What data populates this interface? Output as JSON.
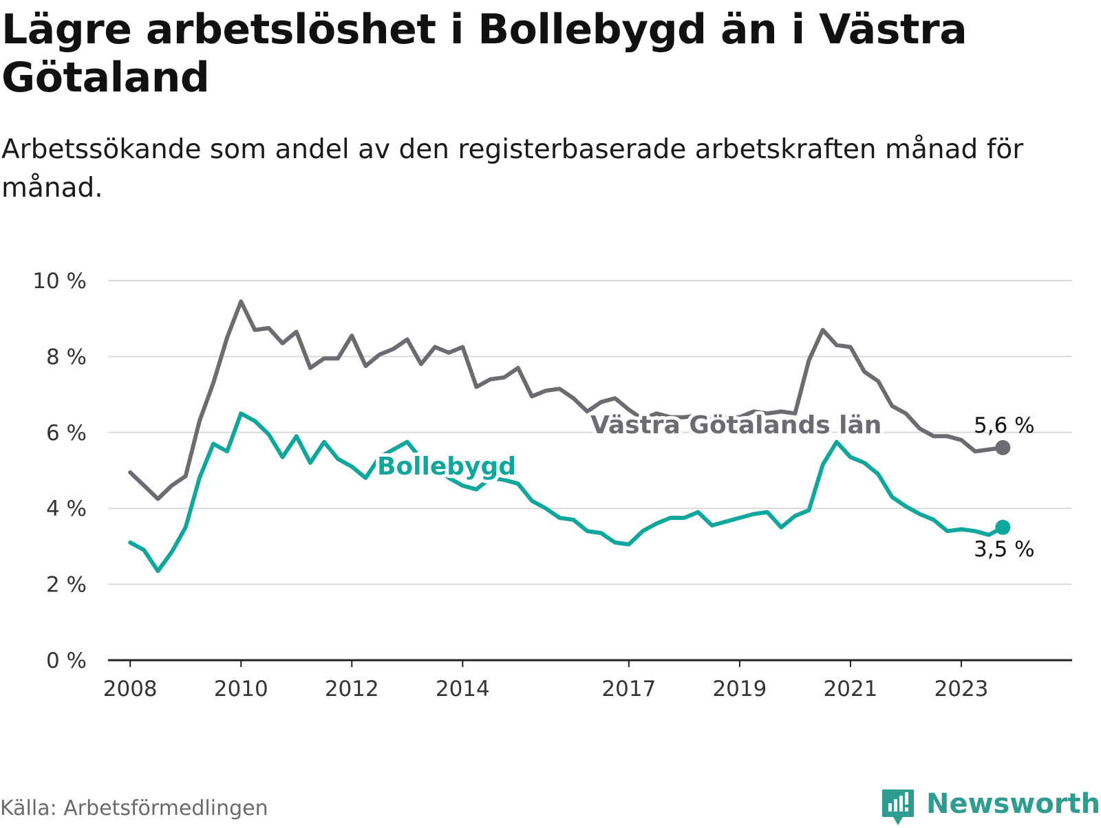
{
  "header": {
    "title": "Lägre arbetslöshet i Bollebygd än i Västra Götaland",
    "subtitle": "Arbetssökande som andel av den registerbaserade arbetskraften månad för månad."
  },
  "footer": {
    "source": "Källa: Arbetsförmedlingen",
    "brand": "Newsworthy"
  },
  "colors": {
    "vg": "#6d6b72",
    "bollebygd": "#0fa69c",
    "grid": "#d9d9d9",
    "axis": "#222222"
  },
  "chart_data": {
    "type": "line",
    "title": "Lägre arbetslöshet i Bollebygd än i Västra Götaland",
    "ylabel": "",
    "xlabel": "",
    "ylim": [
      0,
      10
    ],
    "xlim": [
      2007.6,
      2025.0
    ],
    "y_ticks": [
      {
        "value": 0,
        "label": "0 %"
      },
      {
        "value": 2,
        "label": "2 %"
      },
      {
        "value": 4,
        "label": "4 %"
      },
      {
        "value": 6,
        "label": "6 %"
      },
      {
        "value": 8,
        "label": "8 %"
      },
      {
        "value": 10,
        "label": "10 %"
      }
    ],
    "x_ticks": [
      {
        "value": 2008,
        "label": "2008"
      },
      {
        "value": 2010,
        "label": "2010"
      },
      {
        "value": 2012,
        "label": "2012"
      },
      {
        "value": 2014,
        "label": "2014"
      },
      {
        "value": 2017,
        "label": "2017"
      },
      {
        "value": 2019,
        "label": "2019"
      },
      {
        "value": 2021,
        "label": "2021"
      },
      {
        "value": 2023,
        "label": "2023"
      }
    ],
    "grid": true,
    "series": [
      {
        "name": "Västra Götalands län",
        "color_key": "vg",
        "end_label": "5,6 %",
        "label_anchor": [
          2012.4,
          6.3
        ],
        "x": [
          2008.0,
          2008.25,
          2008.5,
          2008.75,
          2009.0,
          2009.25,
          2009.5,
          2009.75,
          2010.0,
          2010.25,
          2010.5,
          2010.75,
          2011.0,
          2011.25,
          2011.5,
          2011.75,
          2012.0,
          2012.25,
          2012.5,
          2012.75,
          2013.0,
          2013.25,
          2013.5,
          2013.75,
          2014.0,
          2014.25,
          2014.5,
          2014.75,
          2015.0,
          2015.25,
          2015.5,
          2015.75,
          2016.0,
          2016.25,
          2016.5,
          2016.75,
          2017.0,
          2017.25,
          2017.5,
          2017.75,
          2018.0,
          2018.25,
          2018.5,
          2018.75,
          2019.0,
          2019.25,
          2019.5,
          2019.75,
          2020.0,
          2020.25,
          2020.5,
          2020.75,
          2021.0,
          2021.25,
          2021.5,
          2021.75,
          2022.0,
          2022.25,
          2022.5,
          2022.75,
          2023.0,
          2023.25,
          2023.5,
          2023.75
        ],
        "values": [
          4.95,
          4.6,
          4.25,
          4.6,
          4.85,
          6.3,
          7.3,
          8.5,
          9.45,
          8.7,
          8.75,
          8.35,
          8.65,
          7.7,
          7.95,
          7.95,
          8.55,
          7.75,
          8.05,
          8.2,
          8.45,
          7.8,
          8.25,
          8.1,
          8.25,
          7.2,
          7.4,
          7.45,
          7.7,
          6.95,
          7.1,
          7.15,
          6.9,
          6.55,
          6.8,
          6.9,
          6.6,
          6.35,
          6.5,
          6.4,
          6.4,
          6.45,
          6.35,
          6.4,
          6.4,
          6.55,
          6.5,
          6.55,
          6.5,
          7.9,
          8.7,
          8.3,
          8.25,
          7.6,
          7.35,
          6.7,
          6.5,
          6.1,
          5.9,
          5.9,
          5.8,
          5.5,
          5.55,
          5.6
        ]
      },
      {
        "name": "Bollebygd",
        "color_key": "bollebygd",
        "end_label": "3,5 %",
        "label_anchor": [
          2011.6,
          5.3
        ],
        "x": [
          2008.0,
          2008.25,
          2008.5,
          2008.75,
          2009.0,
          2009.25,
          2009.5,
          2009.75,
          2010.0,
          2010.25,
          2010.5,
          2010.75,
          2011.0,
          2011.25,
          2011.5,
          2011.75,
          2012.0,
          2012.25,
          2012.5,
          2012.75,
          2013.0,
          2013.25,
          2013.5,
          2013.75,
          2014.0,
          2014.25,
          2014.5,
          2014.75,
          2015.0,
          2015.25,
          2015.5,
          2015.75,
          2016.0,
          2016.25,
          2016.5,
          2016.75,
          2017.0,
          2017.25,
          2017.5,
          2017.75,
          2018.0,
          2018.25,
          2018.5,
          2018.75,
          2019.0,
          2019.25,
          2019.5,
          2019.75,
          2020.0,
          2020.25,
          2020.5,
          2020.75,
          2021.0,
          2021.25,
          2021.5,
          2021.75,
          2022.0,
          2022.25,
          2022.5,
          2022.75,
          2023.0,
          2023.25,
          2023.5,
          2023.75
        ],
        "values": [
          3.1,
          2.9,
          2.35,
          2.85,
          3.5,
          4.8,
          5.7,
          5.5,
          6.5,
          6.3,
          5.95,
          5.35,
          5.9,
          5.2,
          5.75,
          5.3,
          5.1,
          4.8,
          5.35,
          5.55,
          5.75,
          5.3,
          5.15,
          4.8,
          4.6,
          4.5,
          4.8,
          4.75,
          4.65,
          4.2,
          4.0,
          3.75,
          3.7,
          3.4,
          3.35,
          3.1,
          3.05,
          3.4,
          3.6,
          3.75,
          3.75,
          3.9,
          3.55,
          3.65,
          3.75,
          3.85,
          3.9,
          3.5,
          3.8,
          3.95,
          5.15,
          5.75,
          5.35,
          5.2,
          4.9,
          4.3,
          4.05,
          3.85,
          3.7,
          3.4,
          3.45,
          3.4,
          3.3,
          3.5
        ]
      }
    ]
  }
}
